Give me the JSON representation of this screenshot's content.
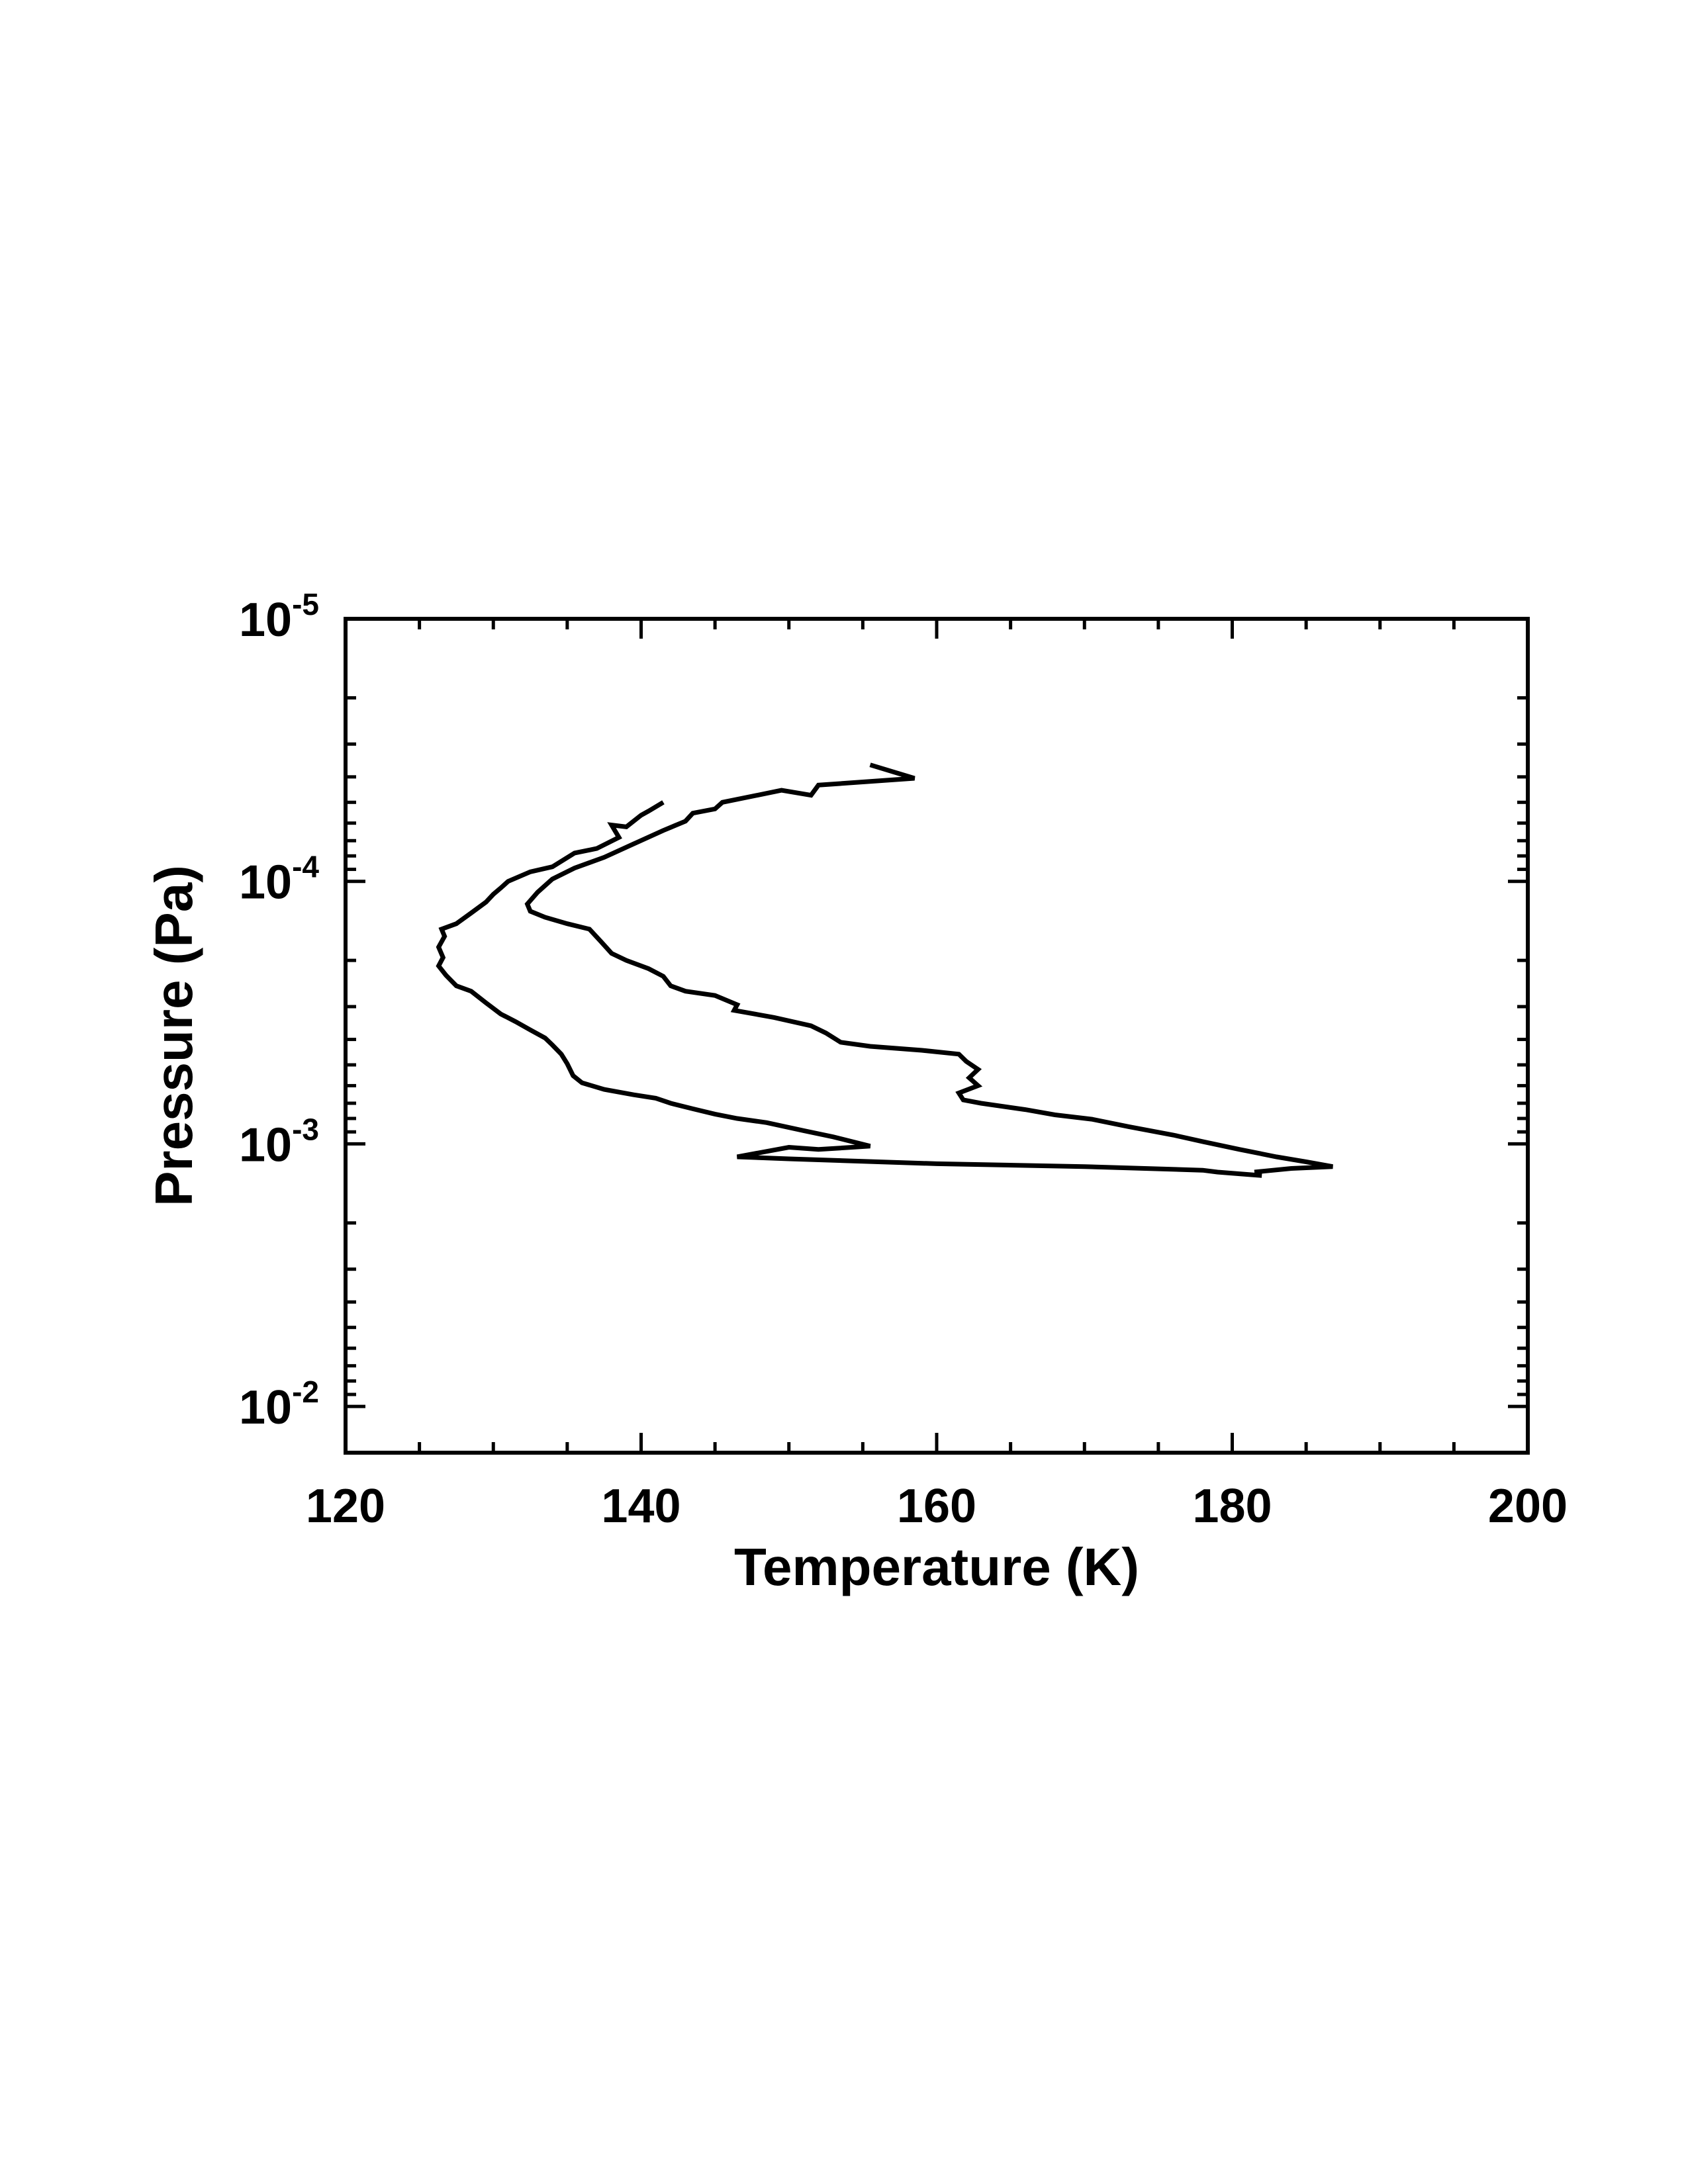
{
  "chart_data": {
    "type": "line",
    "title": "",
    "xlabel": "Temperature (K)",
    "ylabel": "Pressure (Pa)",
    "xlim": [
      120,
      200
    ],
    "ylim": [
      1e-05,
      0.015
    ],
    "yscale": "log",
    "y_inverted": true,
    "grid": false,
    "legend": "none",
    "x_ticks": [
      120,
      140,
      160,
      180,
      200
    ],
    "x_tick_labels": [
      "120",
      "140",
      "160",
      "180",
      "200"
    ],
    "y_ticks": [
      {
        "value": 1e-05,
        "base": "10",
        "exp": "-5"
      },
      {
        "value": 0.0001,
        "base": "10",
        "exp": "-4"
      },
      {
        "value": 0.001,
        "base": "10",
        "exp": "-3"
      },
      {
        "value": 0.01,
        "base": "10",
        "exp": "-2"
      }
    ],
    "line_color": "#000000",
    "series": [
      {
        "values": [
          [
            141.5,
            5e-05
          ],
          [
            140.5,
            5.4e-05
          ],
          [
            140.0,
            5.6e-05
          ],
          [
            139.0,
            6.2e-05
          ],
          [
            138.0,
            6.1e-05
          ],
          [
            138.5,
            6.8e-05
          ],
          [
            137.0,
            7.5e-05
          ],
          [
            135.5,
            7.8e-05
          ],
          [
            134.0,
            8.8e-05
          ],
          [
            132.5,
            9.2e-05
          ],
          [
            131.0,
            0.0001
          ],
          [
            130.5,
            0.000106
          ],
          [
            130.0,
            0.000112
          ],
          [
            129.5,
            0.00012
          ],
          [
            128.5,
            0.000132
          ],
          [
            127.5,
            0.000145
          ],
          [
            126.5,
            0.000152
          ],
          [
            126.7,
            0.000162
          ],
          [
            126.3,
            0.000178
          ],
          [
            126.6,
            0.000195
          ],
          [
            126.3,
            0.00021
          ],
          [
            126.8,
            0.000228
          ],
          [
            127.5,
            0.00025
          ],
          [
            128.5,
            0.000262
          ],
          [
            129.5,
            0.00029
          ],
          [
            130.5,
            0.00032
          ],
          [
            131.5,
            0.000342
          ],
          [
            132.5,
            0.000368
          ],
          [
            133.5,
            0.000395
          ],
          [
            134.0,
            0.00042
          ],
          [
            134.6,
            0.000455
          ],
          [
            135.0,
            0.000495
          ],
          [
            135.4,
            0.00055
          ],
          [
            136.0,
            0.000585
          ],
          [
            137.5,
            0.00062
          ],
          [
            139.5,
            0.00065
          ],
          [
            141.0,
            0.00067
          ],
          [
            142.0,
            0.0007
          ],
          [
            143.5,
            0.000735
          ],
          [
            145.0,
            0.00077
          ],
          [
            146.5,
            0.0008
          ],
          [
            148.5,
            0.00083
          ],
          [
            151.0,
            0.00089
          ],
          [
            153.0,
            0.00094
          ],
          [
            155.5,
            0.00102
          ],
          [
            152.0,
            0.00105
          ],
          [
            150.0,
            0.00103
          ],
          [
            146.5,
            0.00112
          ],
          [
            150.0,
            0.00114
          ],
          [
            160.0,
            0.00119
          ],
          [
            170.0,
            0.00122
          ],
          [
            178.0,
            0.00126
          ],
          [
            179.0,
            0.00128
          ],
          [
            182.0,
            0.00132
          ]
        ]
      },
      {
        "values": [
          [
            155.5,
            3.6e-05
          ],
          [
            158.5,
            4.05e-05
          ],
          [
            152.0,
            4.3e-05
          ],
          [
            151.5,
            4.7e-05
          ],
          [
            149.5,
            4.5e-05
          ],
          [
            145.5,
            5e-05
          ],
          [
            145.0,
            5.3e-05
          ],
          [
            143.5,
            5.5e-05
          ],
          [
            143.0,
            5.9e-05
          ],
          [
            141.5,
            6.4e-05
          ],
          [
            139.5,
            7.2e-05
          ],
          [
            137.5,
            8.1e-05
          ],
          [
            135.5,
            8.9e-05
          ],
          [
            134.0,
            9.8e-05
          ],
          [
            133.0,
            0.00011
          ],
          [
            132.3,
            0.000122
          ],
          [
            132.5,
            0.00013
          ],
          [
            133.5,
            0.000137
          ],
          [
            135.0,
            0.000145
          ],
          [
            136.5,
            0.000152
          ],
          [
            137.3,
            0.00017
          ],
          [
            138.0,
            0.000188
          ],
          [
            139.0,
            0.0002
          ],
          [
            140.5,
            0.000215
          ],
          [
            141.5,
            0.00023
          ],
          [
            142.0,
            0.00025
          ],
          [
            143.0,
            0.000262
          ],
          [
            145.0,
            0.000272
          ],
          [
            146.5,
            0.000295
          ],
          [
            146.3,
            0.00031
          ],
          [
            149.0,
            0.00033
          ],
          [
            151.5,
            0.000355
          ],
          [
            152.5,
            0.000378
          ],
          [
            153.5,
            0.00041
          ],
          [
            155.5,
            0.000425
          ],
          [
            159.0,
            0.00044
          ],
          [
            161.5,
            0.000455
          ],
          [
            162.0,
            0.000485
          ],
          [
            162.8,
            0.00052
          ],
          [
            162.2,
            0.00056
          ],
          [
            162.8,
            0.0006
          ],
          [
            161.5,
            0.00064
          ],
          [
            161.8,
            0.00068
          ],
          [
            163.0,
            0.0007
          ],
          [
            166.0,
            0.00074
          ],
          [
            168.0,
            0.000775
          ],
          [
            170.5,
            0.000805
          ],
          [
            173.0,
            0.00086
          ],
          [
            176.0,
            0.000925
          ],
          [
            178.0,
            0.00098
          ],
          [
            180.5,
            0.00105
          ],
          [
            183.0,
            0.00112
          ],
          [
            185.0,
            0.00117
          ],
          [
            186.8,
            0.00122
          ],
          [
            184.0,
            0.00124
          ],
          [
            181.5,
            0.00128
          ]
        ]
      }
    ]
  }
}
